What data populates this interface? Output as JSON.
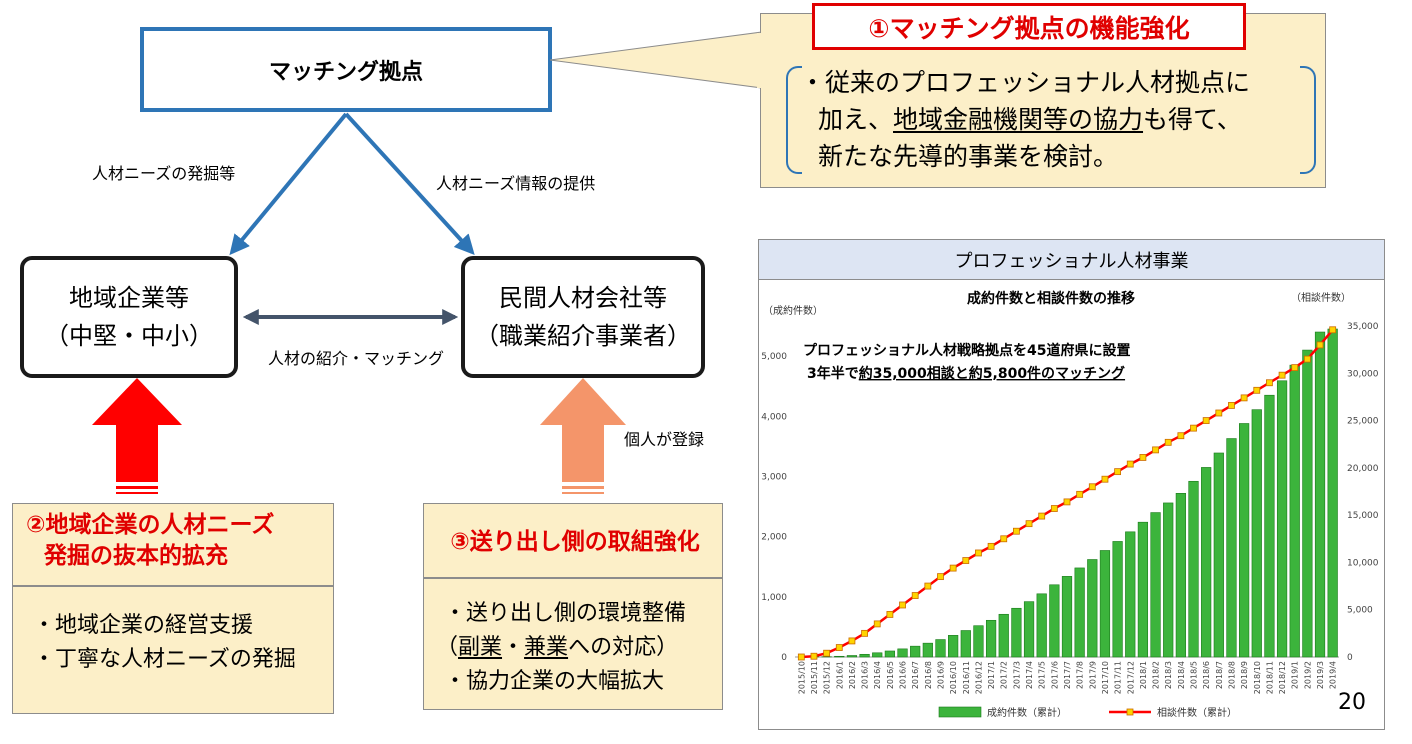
{
  "diagram": {
    "matching_hub": "マッチング拠点",
    "edge_left": "人材ニーズの発掘等",
    "edge_right": "人材ニーズ情報の提供",
    "edge_middle": "人材の紹介・マッチング",
    "regional": {
      "line1": "地域企業等",
      "line2": "（中堅・中小）"
    },
    "private": {
      "line1": "民間人材会社等",
      "line2": "（職業紹介事業者）"
    },
    "individual": "個人が登録"
  },
  "callout": {
    "title": "①マッチング拠点の機能強化",
    "line1": "・従来のプロフェッショナル人材拠点に",
    "line2_pre": "加え、",
    "line2_u": "地域金融機関等の協力",
    "line2_post": "も得て、",
    "line3": "新たな先導的事業を検討。"
  },
  "panel2": {
    "title1": "②地域企業の人材ニーズ",
    "title2": "発掘の抜本的拡充",
    "item1": "・地域企業の経営支援",
    "item2": "・丁寧な人材ニーズの発掘"
  },
  "panel3": {
    "title": "③送り出し側の取組強化",
    "item1": "・送り出し側の環境整備",
    "item2_pre": "（",
    "item2_u1": "副業",
    "item2_mid": "・",
    "item2_u2": "兼業",
    "item2_post": "への対応）",
    "item3": "・協力企業の大幅拡大"
  },
  "chart_header": "プロフェッショナル人材事業",
  "page_number": "20",
  "colors": {
    "blue": "#2e75b6",
    "red": "#e00000",
    "salmon": "#f4956a",
    "panel": "#fcefc8",
    "bar": "#3cb43c",
    "line": "#ff0000",
    "marker": "#ffd400"
  },
  "chart_data": {
    "type": "bar+line",
    "title": "成約件数と相談件数の推移",
    "ylabel_left": "（成約件数）",
    "ylabel_right": "（相談件数）",
    "annotation_line1": "プロフェッショナル人材戦略拠点を45道府県に設置",
    "annotation_line2_pre": "3年半で",
    "annotation_line2_u": "約35,000相談と約5,800件のマッチング",
    "x": [
      "2015/10",
      "2015/11",
      "2015/12",
      "2016/1",
      "2016/2",
      "2016/3",
      "2016/4",
      "2016/5",
      "2016/6",
      "2016/7",
      "2016/8",
      "2016/9",
      "2016/10",
      "2016/11",
      "2016/12",
      "2017/1",
      "2017/2",
      "2017/3",
      "2017/4",
      "2017/5",
      "2017/6",
      "2017/7",
      "2017/8",
      "2017/9",
      "2017/10",
      "2017/11",
      "2017/12",
      "2018/1",
      "2018/2",
      "2018/3",
      "2018/4",
      "2018/5",
      "2018/6",
      "2018/7",
      "2018/8",
      "2018/9",
      "2018/10",
      "2018/11",
      "2018/12",
      "2019/1",
      "2019/2",
      "2019/3",
      "2019/4"
    ],
    "yticks_left": [
      "0",
      "1,000",
      "2,000",
      "3,000",
      "4,000",
      "5,000"
    ],
    "yticks_right": [
      "0",
      "5,000",
      "10,000",
      "15,000",
      "20,000",
      "25,000",
      "30,000",
      "35,000"
    ],
    "ylim_left": [
      0,
      5500
    ],
    "ylim_right": [
      0,
      35000
    ],
    "series": [
      {
        "name": "成約件数（累計）",
        "axis": "left",
        "kind": "bar",
        "values": [
          0,
          2,
          5,
          12,
          25,
          45,
          70,
          100,
          135,
          180,
          230,
          290,
          360,
          440,
          520,
          610,
          710,
          810,
          920,
          1050,
          1200,
          1340,
          1480,
          1620,
          1770,
          1920,
          2080,
          2240,
          2400,
          2560,
          2720,
          2920,
          3150,
          3390,
          3630,
          3880,
          4110,
          4350,
          4590,
          4850,
          5100,
          5400,
          5450
        ]
      },
      {
        "name": "相談件数（累計）",
        "axis": "right",
        "kind": "line",
        "values": [
          0,
          80,
          400,
          1000,
          1700,
          2500,
          3500,
          4500,
          5500,
          6500,
          7500,
          8500,
          9400,
          10200,
          11000,
          11700,
          12500,
          13300,
          14100,
          14900,
          15700,
          16400,
          17200,
          18000,
          18800,
          19600,
          20400,
          21100,
          21900,
          22700,
          23400,
          24200,
          25000,
          25800,
          26600,
          27400,
          28200,
          29000,
          29800,
          30600,
          31500,
          33000,
          34600
        ]
      }
    ],
    "legend_placement": "bottom"
  }
}
